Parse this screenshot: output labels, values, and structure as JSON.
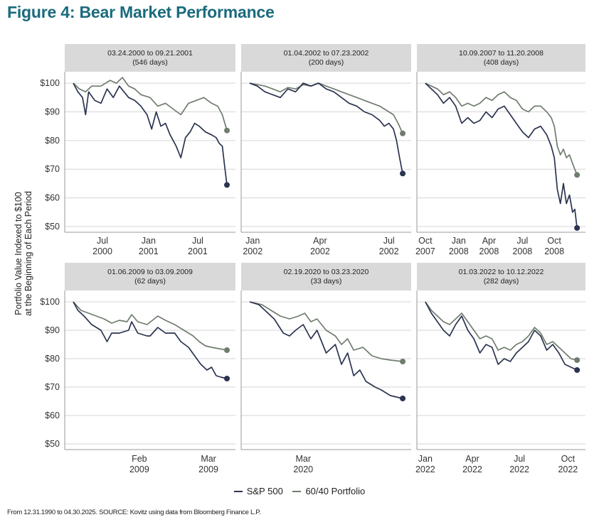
{
  "title": "Figure 4: Bear Market Performance",
  "footnote": "From 12.31.1990 to 04.30.2025. SOURCE: Kovitz using data from Bloomberg Finance L.P.",
  "colors": {
    "sp500": "#2b3450",
    "balanced": "#6f7d6e",
    "header_bg": "#d9d9d9",
    "title": "#1a6b7d",
    "grid": "#d6d6d6"
  },
  "chart_data": {
    "type": "line",
    "ylabel": "Portfolio Value Indexed to $100\nat the Beginning of Each Period",
    "ylim": [
      48,
      104
    ],
    "yticks": [
      "$100",
      "$90",
      "$80",
      "$70",
      "$60",
      "$50"
    ],
    "ytick_values": [
      100,
      90,
      80,
      70,
      60,
      50
    ],
    "legend": [
      {
        "name": "S&P 500",
        "color": "#2b3450"
      },
      {
        "name": "60/40 Portfolio",
        "color": "#6f7d6e"
      }
    ],
    "panels": [
      {
        "period": "03.24.2000 to 09.21.2001",
        "days": "(546 days)",
        "xticks": [
          {
            "t": 0.19,
            "label": "Jul\n2000"
          },
          {
            "t": 0.49,
            "label": "Jan\n2001"
          },
          {
            "t": 0.81,
            "label": "Jul\n2001"
          }
        ],
        "series": [
          {
            "name": "S&P 500",
            "t": [
              0,
              0.03,
              0.06,
              0.08,
              0.1,
              0.14,
              0.18,
              0.22,
              0.26,
              0.3,
              0.33,
              0.36,
              0.4,
              0.44,
              0.48,
              0.51,
              0.54,
              0.57,
              0.6,
              0.63,
              0.67,
              0.7,
              0.73,
              0.76,
              0.79,
              0.82,
              0.86,
              0.9,
              0.93,
              0.95,
              0.97,
              0.985,
              1.0
            ],
            "y": [
              100,
              97,
              95,
              89,
              97,
              94,
              93,
              98,
              95,
              99,
              97,
              95,
              94,
              92,
              89,
              84,
              90,
              85,
              86,
              82,
              78,
              74,
              81,
              83,
              86,
              85,
              83,
              82,
              81,
              79,
              78,
              71,
              64.5
            ]
          },
          {
            "name": "60/40 Portfolio",
            "t": [
              0,
              0.04,
              0.08,
              0.12,
              0.18,
              0.24,
              0.28,
              0.32,
              0.36,
              0.4,
              0.44,
              0.5,
              0.55,
              0.6,
              0.65,
              0.7,
              0.75,
              0.8,
              0.85,
              0.9,
              0.94,
              0.97,
              1.0
            ],
            "y": [
              100,
              98,
              97,
              99,
              99,
              101,
              100,
              102,
              99,
              98,
              96,
              95,
              92,
              93,
              91,
              89,
              93,
              94,
              95,
              93,
              92,
              89,
              83.5
            ]
          }
        ],
        "end_values": [
          64.5,
          83.5
        ]
      },
      {
        "period": "01.04.2002 to 07.23.2002",
        "days": "(200 days)",
        "xticks": [
          {
            "t": 0.02,
            "label": "Jan\n2002"
          },
          {
            "t": 0.46,
            "label": "Apr\n2002"
          },
          {
            "t": 0.91,
            "label": "Jul\n2002"
          }
        ],
        "series": [
          {
            "name": "S&P 500",
            "t": [
              0,
              0.05,
              0.1,
              0.15,
              0.2,
              0.25,
              0.3,
              0.35,
              0.4,
              0.45,
              0.5,
              0.55,
              0.6,
              0.65,
              0.7,
              0.75,
              0.8,
              0.85,
              0.88,
              0.91,
              0.94,
              0.96,
              0.98,
              1.0
            ],
            "y": [
              100,
              99,
              97,
              96,
              95,
              98,
              97,
              100,
              99,
              100,
              98,
              97,
              95,
              93,
              92,
              90,
              89,
              87,
              85,
              86,
              84,
              80,
              74,
              68.5
            ]
          },
          {
            "name": "60/40 Portfolio",
            "t": [
              0,
              0.05,
              0.1,
              0.15,
              0.2,
              0.25,
              0.3,
              0.35,
              0.4,
              0.45,
              0.5,
              0.55,
              0.6,
              0.65,
              0.7,
              0.75,
              0.8,
              0.85,
              0.88,
              0.91,
              0.94,
              0.97,
              1.0
            ],
            "y": [
              100,
              99.5,
              99,
              98,
              97,
              98.5,
              98,
              99.5,
              99,
              100,
              99,
              98,
              97,
              96,
              95,
              94,
              93,
              92,
              91,
              90,
              89,
              86,
              82.5
            ]
          }
        ],
        "end_values": [
          68.5,
          82.5
        ]
      },
      {
        "period": "10.09.2007 to 11.20.2008",
        "days": "(408 days)",
        "xticks": [
          {
            "t": 0.0,
            "label": "Oct\n2007"
          },
          {
            "t": 0.22,
            "label": "Jan\n2008"
          },
          {
            "t": 0.42,
            "label": "Apr\n2008"
          },
          {
            "t": 0.64,
            "label": "Jul\n2008"
          },
          {
            "t": 0.85,
            "label": "Oct\n2008"
          }
        ],
        "series": [
          {
            "name": "S&P 500",
            "t": [
              0,
              0.04,
              0.08,
              0.12,
              0.16,
              0.2,
              0.24,
              0.28,
              0.32,
              0.36,
              0.4,
              0.44,
              0.48,
              0.52,
              0.56,
              0.6,
              0.64,
              0.68,
              0.72,
              0.76,
              0.8,
              0.83,
              0.85,
              0.87,
              0.89,
              0.91,
              0.93,
              0.95,
              0.97,
              0.985,
              1.0
            ],
            "y": [
              100,
              98,
              96,
              93,
              95,
              92,
              86,
              88,
              86,
              87,
              90,
              88,
              91,
              92,
              89,
              86,
              83,
              81,
              84,
              85,
              82,
              78,
              74,
              63,
              58,
              65,
              58,
              61,
              55,
              56,
              49.5
            ]
          },
          {
            "name": "60/40 Portfolio",
            "t": [
              0,
              0.04,
              0.08,
              0.12,
              0.16,
              0.2,
              0.24,
              0.28,
              0.32,
              0.36,
              0.4,
              0.44,
              0.48,
              0.52,
              0.56,
              0.6,
              0.64,
              0.68,
              0.72,
              0.76,
              0.8,
              0.83,
              0.85,
              0.87,
              0.89,
              0.91,
              0.93,
              0.95,
              0.97,
              1.0
            ],
            "y": [
              100,
              99,
              98,
              96,
              97,
              95,
              92,
              93,
              92,
              93,
              95,
              94,
              96,
              97,
              95,
              94,
              91,
              90,
              92,
              92,
              90,
              88,
              85,
              78,
              75,
              77,
              74,
              75,
              72,
              68
            ]
          }
        ],
        "end_values": [
          49.5,
          68
        ]
      },
      {
        "period": "01.06.2009 to 03.09.2009",
        "days": "(62 days)",
        "xticks": [
          {
            "t": 0.43,
            "label": "Feb\n2009"
          },
          {
            "t": 0.88,
            "label": "Mar\n2009"
          }
        ],
        "series": [
          {
            "name": "S&P 500",
            "t": [
              0,
              0.03,
              0.07,
              0.12,
              0.18,
              0.22,
              0.25,
              0.3,
              0.36,
              0.38,
              0.42,
              0.48,
              0.5,
              0.55,
              0.6,
              0.66,
              0.7,
              0.75,
              0.79,
              0.83,
              0.87,
              0.9,
              0.93,
              0.96,
              1.0
            ],
            "y": [
              100,
              97,
              95,
              92,
              90,
              86,
              89,
              89,
              90,
              93,
              89,
              88,
              88,
              91,
              89,
              89,
              86,
              84,
              81,
              78,
              76,
              77,
              74,
              73.5,
              73
            ]
          },
          {
            "name": "60/40 Portfolio",
            "t": [
              0,
              0.05,
              0.1,
              0.15,
              0.2,
              0.25,
              0.3,
              0.35,
              0.38,
              0.42,
              0.48,
              0.55,
              0.6,
              0.66,
              0.72,
              0.78,
              0.82,
              0.86,
              0.9,
              0.95,
              1.0
            ],
            "y": [
              100,
              97,
              96,
              95,
              94,
              92.5,
              93.5,
              93,
              95.5,
              93,
              92,
              95,
              93.5,
              92,
              90,
              88,
              86,
              84.5,
              84,
              83.5,
              83
            ]
          }
        ],
        "end_values": [
          73,
          83
        ]
      },
      {
        "period": "02.19.2020 to 03.23.2020",
        "days": "(33 days)",
        "xticks": [
          {
            "t": 0.35,
            "label": "Mar\n2020"
          }
        ],
        "series": [
          {
            "name": "S&P 500",
            "t": [
              0,
              0.06,
              0.1,
              0.16,
              0.22,
              0.26,
              0.3,
              0.35,
              0.4,
              0.44,
              0.5,
              0.56,
              0.6,
              0.64,
              0.68,
              0.72,
              0.76,
              0.82,
              0.86,
              0.92,
              1.0
            ],
            "y": [
              100,
              99,
              97,
              94,
              89,
              88,
              90,
              92,
              87,
              90,
              82,
              85,
              78,
              82,
              74,
              76,
              72,
              70,
              69,
              67,
              66
            ]
          },
          {
            "name": "60/40 Portfolio",
            "t": [
              0,
              0.08,
              0.14,
              0.2,
              0.26,
              0.32,
              0.36,
              0.4,
              0.44,
              0.5,
              0.56,
              0.6,
              0.64,
              0.68,
              0.74,
              0.8,
              0.86,
              0.92,
              1.0
            ],
            "y": [
              100,
              99,
              97,
              95,
              94,
              95,
              96,
              93,
              94,
              90,
              88,
              85,
              87,
              83,
              84,
              81,
              80,
              79.5,
              79
            ]
          }
        ],
        "end_values": [
          66,
          79
        ]
      },
      {
        "period": "01.03.2022 to 10.12.2022",
        "days": "(282 days)",
        "xticks": [
          {
            "t": 0.0,
            "label": "Jan\n2022"
          },
          {
            "t": 0.31,
            "label": "Apr\n2022"
          },
          {
            "t": 0.62,
            "label": "Jul\n2022"
          },
          {
            "t": 0.94,
            "label": "Oct\n2022"
          }
        ],
        "series": [
          {
            "name": "S&P 500",
            "t": [
              0,
              0.04,
              0.08,
              0.12,
              0.16,
              0.2,
              0.24,
              0.28,
              0.32,
              0.36,
              0.4,
              0.44,
              0.48,
              0.52,
              0.56,
              0.6,
              0.64,
              0.68,
              0.72,
              0.76,
              0.8,
              0.84,
              0.88,
              0.92,
              0.96,
              1.0
            ],
            "y": [
              100,
              96,
              93,
              90,
              88,
              92,
              95,
              90,
              87,
              82,
              85,
              84,
              78,
              80,
              79,
              82,
              84,
              86,
              90,
              88,
              83,
              85,
              82,
              78,
              77,
              76
            ]
          },
          {
            "name": "60/40 Portfolio",
            "t": [
              0,
              0.04,
              0.08,
              0.12,
              0.16,
              0.2,
              0.24,
              0.28,
              0.32,
              0.36,
              0.4,
              0.44,
              0.48,
              0.52,
              0.56,
              0.6,
              0.64,
              0.68,
              0.72,
              0.76,
              0.8,
              0.84,
              0.88,
              0.92,
              0.96,
              1.0
            ],
            "y": [
              100,
              97,
              95,
              93,
              92,
              94,
              96,
              93,
              90,
              87,
              88,
              87,
              83,
              84,
              83,
              85,
              86,
              88,
              91,
              89,
              85,
              86,
              84,
              82,
              80,
              79.5
            ]
          }
        ],
        "end_values": [
          76,
          79.5
        ]
      }
    ]
  }
}
